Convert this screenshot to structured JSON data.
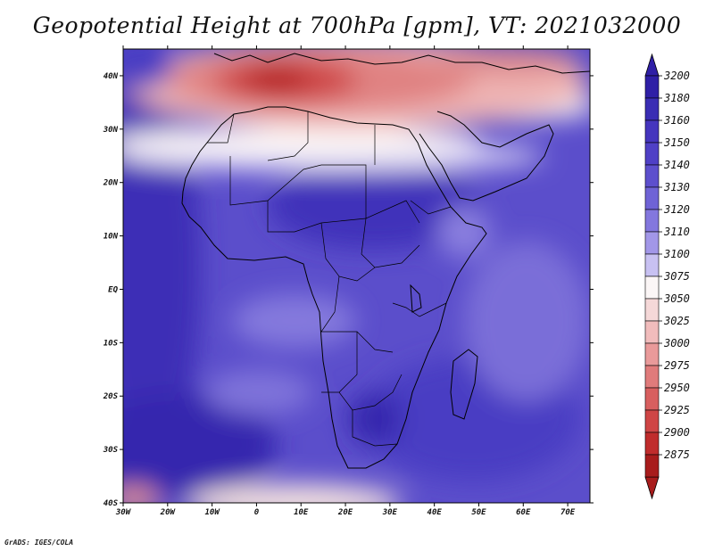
{
  "title": "Geopotential Height at 700hPa [gpm], VT: 2021032000",
  "credit": "GrADS: IGES/COLA",
  "colors": {
    "coast": "#000000",
    "frame": "#000000"
  },
  "chart_data": {
    "type": "heatmap",
    "variable": "Geopotential Height",
    "level": "700hPa",
    "units": "gpm",
    "valid_time": "2021032000",
    "lon_range": [
      -30,
      75
    ],
    "lat_range": [
      -40,
      45
    ],
    "x_ticks": [
      "30W",
      "20W",
      "10W",
      "0",
      "10E",
      "20E",
      "30E",
      "40E",
      "50E",
      "60E",
      "70E"
    ],
    "x_tick_values": [
      -30,
      -20,
      -10,
      0,
      10,
      20,
      30,
      40,
      50,
      60,
      70
    ],
    "y_ticks": [
      "40N",
      "30N",
      "20N",
      "10N",
      "EQ",
      "10S",
      "20S",
      "30S",
      "40S"
    ],
    "y_tick_values": [
      40,
      30,
      20,
      10,
      0,
      -10,
      -20,
      -30,
      -40
    ],
    "colorbar": {
      "levels": [
        3200,
        3180,
        3160,
        3150,
        3140,
        3130,
        3120,
        3110,
        3100,
        3075,
        3050,
        3025,
        3000,
        2975,
        2950,
        2925,
        2900,
        2875
      ],
      "labels": [
        "3200",
        "3180",
        "3160",
        "3150",
        "3140",
        "3130",
        "3120",
        "3110",
        "3100",
        "3075",
        "3050",
        "3025",
        "3000",
        "2975",
        "2950",
        "2925",
        "2900",
        "2875"
      ],
      "colors": [
        "#2f1fa6",
        "#3a2db4",
        "#4535be",
        "#4f40c6",
        "#5d4fcd",
        "#6f63d6",
        "#8377de",
        "#a297e8",
        "#c8c1f2",
        "#fbf6f6",
        "#f5d8d8",
        "#f1bcbc",
        "#e99a9a",
        "#e07b7b",
        "#d85f5f",
        "#cf4545",
        "#c02c2c",
        "#a81c1c"
      ]
    }
  }
}
